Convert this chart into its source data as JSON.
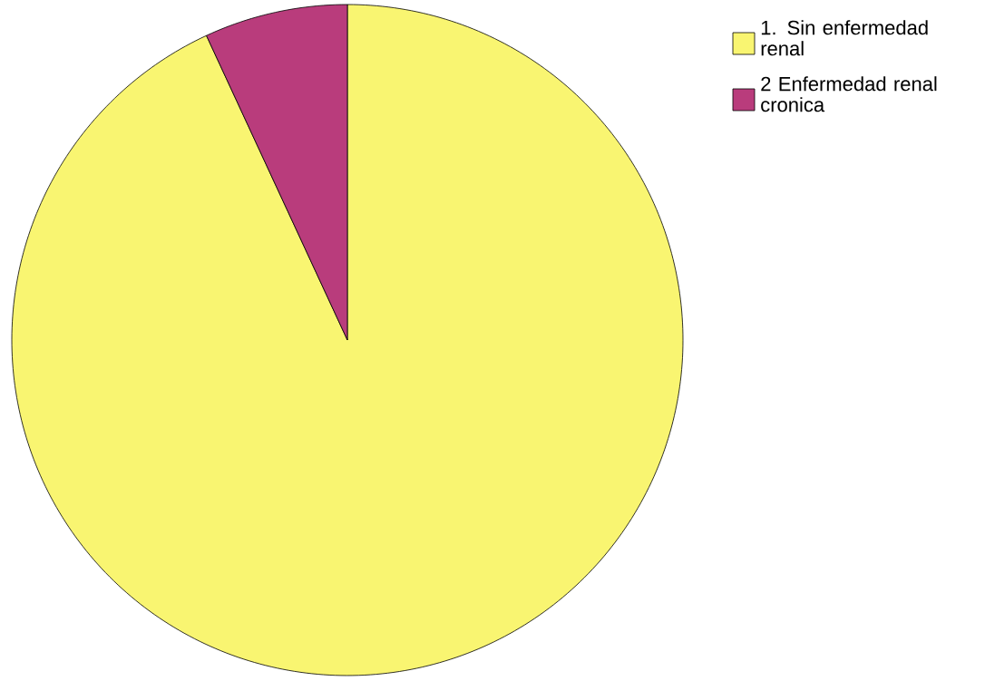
{
  "chart_data": {
    "type": "pie",
    "categories": [
      "1. Sin enfermedad renal",
      "2 Enfermedad renal cronica"
    ],
    "values": [
      93.1,
      6.9
    ],
    "colors": [
      "#f9f571",
      "#b93c7c"
    ],
    "legend": "top right"
  }
}
